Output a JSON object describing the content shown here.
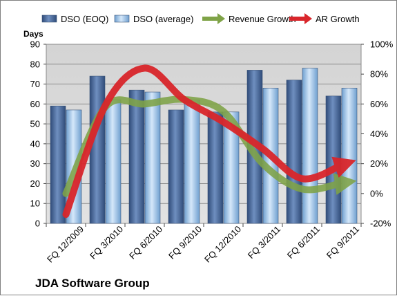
{
  "chart_data": {
    "type": "bar",
    "title": "JDA Software Group",
    "ylabel": "Days",
    "ylim": [
      0,
      90
    ],
    "yticks": [
      "0",
      "10",
      "20",
      "30",
      "40",
      "50",
      "60",
      "70",
      "80",
      "90"
    ],
    "y2lim": [
      -20,
      100
    ],
    "y2ticks": [
      "-20%",
      "0%",
      "20%",
      "40%",
      "60%",
      "80%",
      "100%"
    ],
    "categories": [
      "FQ 12/2009",
      "FQ 3/2010",
      "FQ 6/2010",
      "FQ 9/2010",
      "FQ 12/2010",
      "FQ 3/2011",
      "FQ 6/2011",
      "FQ 9/2011"
    ],
    "series": [
      {
        "name": "DSO (EOQ)",
        "type": "bar",
        "axis": "left",
        "values": [
          59,
          74,
          67,
          57,
          56,
          77,
          72,
          64
        ],
        "color": "#4f6fa0"
      },
      {
        "name": "DSO (average)",
        "type": "bar",
        "axis": "left",
        "values": [
          57,
          62,
          66,
          62,
          56,
          68,
          78,
          68
        ],
        "color": "#9cc0e6"
      },
      {
        "name": "Revenue Growth",
        "type": "line",
        "axis": "right",
        "values": [
          0,
          58,
          60,
          63,
          55,
          20,
          3,
          7
        ],
        "unit": "%",
        "color": "#6f9a3c"
      },
      {
        "name": "AR Growth",
        "type": "line",
        "axis": "right",
        "values": [
          -14,
          59,
          84,
          63,
          48,
          30,
          10,
          19
        ],
        "unit": "%",
        "color": "#d9262b"
      }
    ],
    "legend": "top",
    "grid": true
  }
}
